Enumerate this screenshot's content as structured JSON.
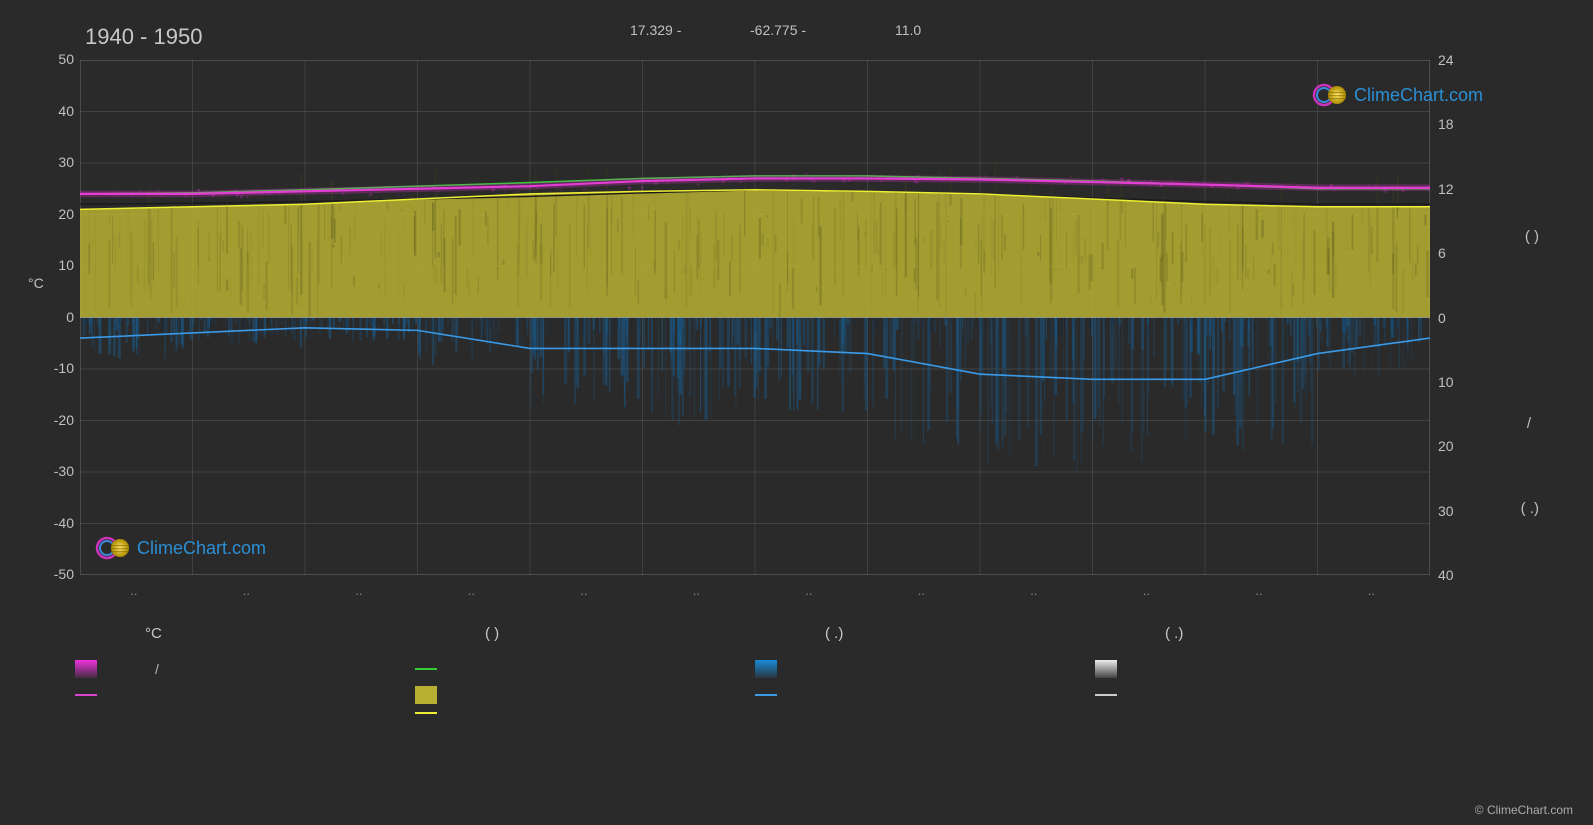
{
  "chart": {
    "period": "1940 - 1950",
    "header_lat": "17.329 -",
    "header_lon": "-62.775 -",
    "header_elev": "11.0",
    "background_color": "#2a2a2a",
    "grid_color": "#888888",
    "grid_opacity": 0.35,
    "plot_bg": "#2a2a2a",
    "left_axis": {
      "label": "°C",
      "min": -50,
      "max": 50,
      "step": 10,
      "ticks": [
        50,
        40,
        30,
        20,
        10,
        0,
        -10,
        -20,
        -30,
        -40,
        -50
      ]
    },
    "right_axis": {
      "top_ticks": [
        24,
        18,
        12,
        6,
        0
      ],
      "bottom_ticks": [
        10,
        20,
        30,
        40
      ],
      "label_top": "(      )",
      "label_mid": "/",
      "label_bot": "(  .)"
    },
    "x_axis": {
      "months": 12,
      "grid_lines": 12
    },
    "series": {
      "tmax_green": {
        "color": "#33cc33",
        "width": 1.6,
        "values": [
          24,
          24.2,
          24.8,
          25.5,
          26.2,
          27,
          27.5,
          27.5,
          27,
          26.5,
          25.8,
          25
        ]
      },
      "tmax_magenta": {
        "color": "#ee33dd",
        "width": 2.2,
        "glow": true,
        "values": [
          24,
          24,
          24.5,
          25,
          25.5,
          26.5,
          27,
          27,
          26.8,
          26.3,
          25.8,
          25.2
        ]
      },
      "tmax_magenta_line": {
        "color": "#dd44cc",
        "width": 1.2,
        "values": [
          24,
          24,
          24.5,
          25,
          25.5,
          26.5,
          27,
          27,
          26.8,
          26.3,
          25.8,
          25.2
        ]
      },
      "sunshine_yellow_area": {
        "color": "#b8b032",
        "opacity": 0.85,
        "top_values": [
          21,
          21.5,
          22,
          23,
          24,
          24.5,
          24.8,
          24.5,
          24,
          23,
          22,
          21.5
        ],
        "bottom": 0
      },
      "sunshine_yellow_line": {
        "color": "#eeee33",
        "width": 1.5,
        "values": [
          21,
          21.5,
          22,
          23,
          24,
          24.5,
          24.8,
          24.5,
          24,
          23,
          22,
          21.5
        ]
      },
      "dark_line": {
        "color": "#1a1a1a",
        "width": 1.4,
        "values": [
          22,
          22.2,
          22.5,
          23,
          23.5,
          24.2,
          24.8,
          24.5,
          24,
          23.2,
          22.5,
          22
        ]
      },
      "precip_area": {
        "color": "#1a5a8a",
        "opacity": 0.55,
        "noise_color": "#0a3a5a",
        "top": 0,
        "depth_values": [
          -8,
          -6,
          -5,
          -10,
          -18,
          -22,
          -20,
          -25,
          -30,
          -28,
          -26,
          -12
        ]
      },
      "precip_blue_line": {
        "color": "#3a9ae8",
        "width": 1.6,
        "values": [
          -4,
          -3,
          -2,
          -2.5,
          -6,
          -6,
          -6,
          -7,
          -11,
          -12,
          -12,
          -7,
          -4
        ]
      },
      "gray_line": {
        "color": "#cccccc",
        "width": 1.2
      }
    },
    "watermark": {
      "text": "ClimeChart.com",
      "logo_colors": {
        "ring": "#cc33bb",
        "ring2": "#3a8add",
        "sphere_a": "#ffd633",
        "sphere_b": "#2a8acc"
      }
    },
    "copyright": "© ClimeChart.com"
  },
  "legend": {
    "headers": [
      "°C",
      "(          )",
      "(   .)",
      "(   .)"
    ],
    "row1": [
      {
        "type": "swatch",
        "color": "#ee33dd",
        "gradient": true,
        "label": "/"
      },
      {
        "type": "line",
        "color": "#33cc33",
        "label": ""
      },
      {
        "type": "swatch",
        "color": "#1a8ad8",
        "gradient": true,
        "label": ""
      },
      {
        "type": "swatch",
        "color": "#eeeeee",
        "gradient": true,
        "label": ""
      }
    ],
    "row2": [
      {
        "type": "line",
        "color": "#dd44cc",
        "label": ""
      },
      {
        "type": "swatch",
        "color": "#b8b032",
        "label": ""
      },
      {
        "type": "line",
        "color": "#3a9ae8",
        "label": ""
      },
      {
        "type": "line",
        "color": "#cccccc",
        "label": ""
      }
    ],
    "row3": [
      {
        "type": "none"
      },
      {
        "type": "line",
        "color": "#eeee33",
        "label": ""
      },
      {
        "type": "none"
      },
      {
        "type": "none"
      }
    ]
  }
}
